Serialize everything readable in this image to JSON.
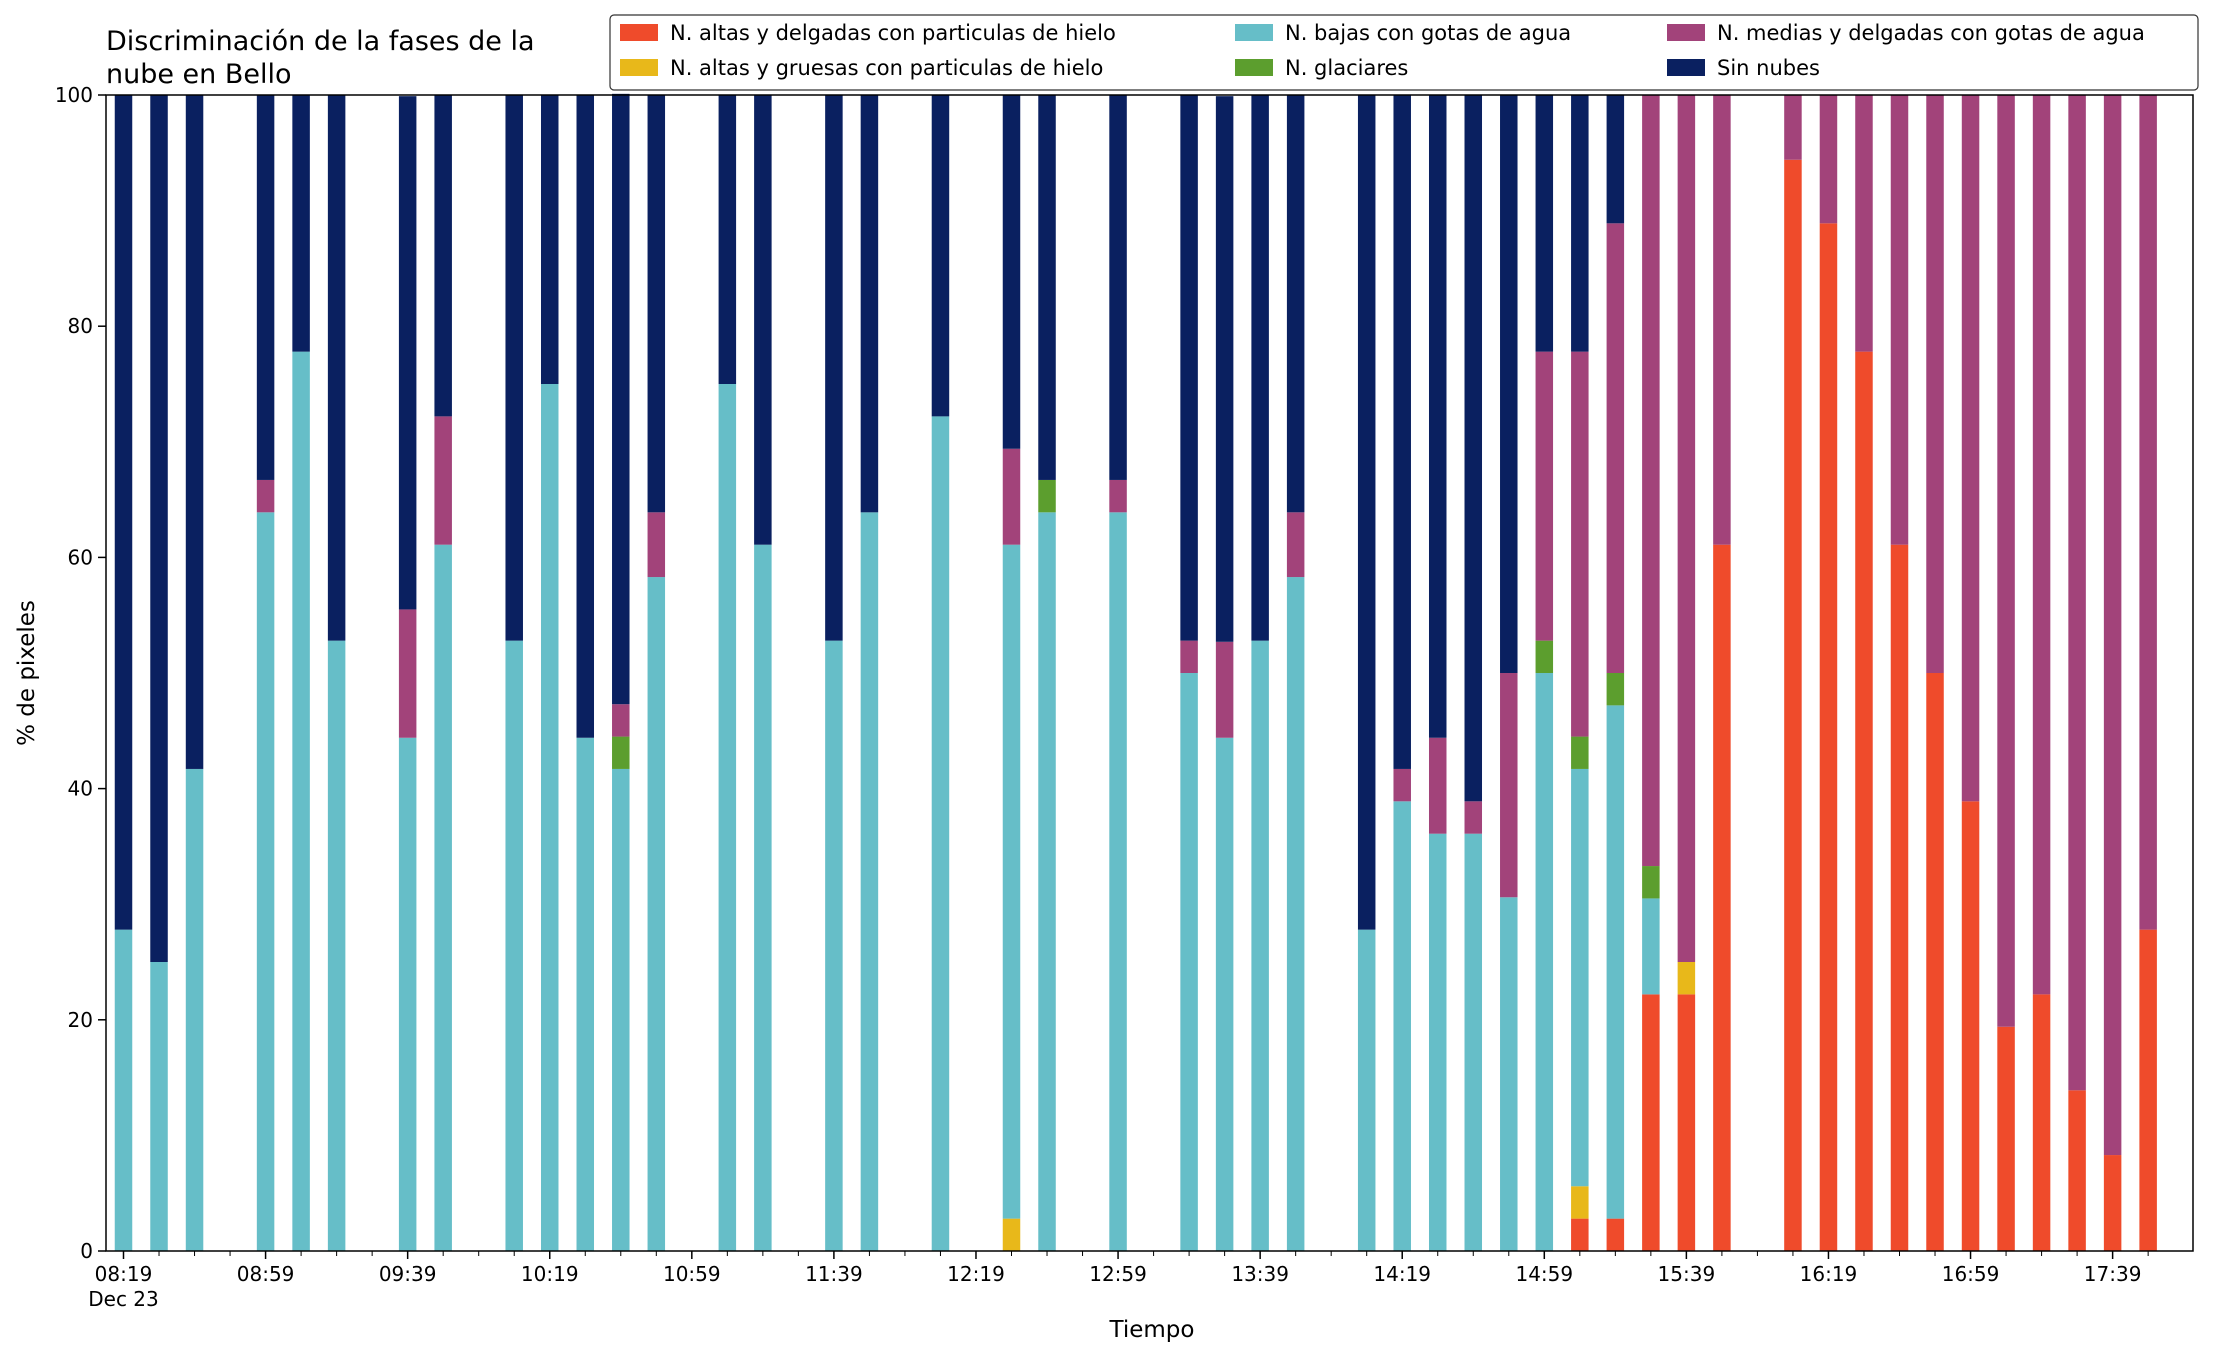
{
  "chart_data": {
    "type": "bar",
    "stacked": true,
    "title_lines": [
      "Discriminación de la fases de la",
      "nube en Bello"
    ],
    "xlabel": "Tiempo",
    "ylabel": "% de pixeles",
    "ylim": [
      0,
      100
    ],
    "yticks": [
      0,
      20,
      40,
      60,
      80,
      100
    ],
    "grid": false,
    "legend_position": "top-right",
    "x_start": "08:19",
    "x_step_minutes": 10,
    "x_count": 58,
    "xtick_labels": [
      {
        "label": "08:19",
        "sublabel": "Dec 23",
        "index": 0
      },
      {
        "label": "08:59",
        "index": 4
      },
      {
        "label": "09:39",
        "index": 8
      },
      {
        "label": "10:19",
        "index": 12
      },
      {
        "label": "10:59",
        "index": 16
      },
      {
        "label": "11:39",
        "index": 20
      },
      {
        "label": "12:19",
        "index": 24
      },
      {
        "label": "12:59",
        "index": 28
      },
      {
        "label": "13:39",
        "index": 32
      },
      {
        "label": "14:19",
        "index": 36
      },
      {
        "label": "14:59",
        "index": 40
      },
      {
        "label": "15:39",
        "index": 44
      },
      {
        "label": "16:19",
        "index": 48
      },
      {
        "label": "16:59",
        "index": 52
      },
      {
        "label": "17:39",
        "index": 56
      }
    ],
    "series": [
      {
        "name": "N. altas y delgadas con particulas de hielo",
        "color": "#ef4b2b",
        "values": [
          0,
          0,
          0,
          null,
          0,
          0,
          0,
          null,
          0,
          0,
          null,
          0,
          0,
          0,
          0,
          0,
          null,
          0,
          0,
          null,
          0,
          0,
          null,
          0,
          null,
          0,
          0,
          null,
          0,
          null,
          0,
          0,
          0,
          0,
          null,
          0,
          0,
          0,
          0,
          0,
          0,
          2.8,
          2.8,
          22.2,
          22.2,
          61.1,
          null,
          94.4,
          88.9,
          77.8,
          61.1,
          50,
          38.9,
          19.4,
          22.2,
          13.9,
          8.3,
          27.8
        ]
      },
      {
        "name": "N. altas y gruesas con particulas de hielo",
        "color": "#e8b81a",
        "values": [
          0,
          0,
          0,
          null,
          0,
          0,
          0,
          null,
          0,
          0,
          null,
          0,
          0,
          0,
          0,
          0,
          null,
          0,
          0,
          null,
          0,
          0,
          null,
          0,
          null,
          2.8,
          0,
          null,
          0,
          null,
          0,
          0,
          0,
          0,
          null,
          0,
          0,
          0,
          0,
          0,
          0,
          2.8,
          0,
          0,
          2.8,
          0,
          null,
          0,
          0,
          0,
          0,
          0,
          0,
          0,
          0,
          0,
          0,
          0
        ]
      },
      {
        "name": "N. bajas con gotas de agua",
        "color": "#66bec8",
        "values": [
          27.8,
          25,
          41.7,
          null,
          63.9,
          77.8,
          52.8,
          null,
          44.4,
          61.1,
          null,
          52.8,
          75,
          44.4,
          41.7,
          58.3,
          null,
          75,
          61.1,
          null,
          52.8,
          63.9,
          null,
          72.2,
          null,
          58.3,
          63.9,
          null,
          63.9,
          null,
          50,
          44.4,
          52.8,
          58.3,
          null,
          27.8,
          38.9,
          36.1,
          36.1,
          30.6,
          50,
          36.1,
          44.4,
          8.3,
          0,
          0,
          null,
          0,
          0,
          0,
          0,
          0,
          0,
          0,
          0,
          0,
          0,
          0
        ]
      },
      {
        "name": "N. glaciares",
        "color": "#5c9e2e",
        "values": [
          0,
          0,
          0,
          null,
          0,
          0,
          0,
          null,
          0,
          0,
          null,
          0,
          0,
          0,
          2.8,
          0,
          null,
          0,
          0,
          null,
          0,
          0,
          null,
          0,
          null,
          0,
          2.8,
          null,
          0,
          null,
          0,
          0,
          0,
          0,
          null,
          0,
          0,
          0,
          0,
          0,
          2.8,
          2.8,
          2.8,
          2.8,
          0,
          0,
          null,
          0,
          0,
          0,
          0,
          0,
          0,
          0,
          0,
          0,
          0,
          0
        ]
      },
      {
        "name": "N. medias y delgadas con gotas de agua",
        "color": "#a2437a",
        "values": [
          0,
          0,
          0,
          null,
          2.8,
          0,
          0,
          null,
          11.1,
          11.1,
          null,
          0,
          0,
          0,
          2.8,
          5.6,
          null,
          0,
          0,
          null,
          0,
          0,
          null,
          0,
          null,
          8.3,
          0,
          null,
          2.8,
          null,
          2.8,
          8.3,
          0,
          5.6,
          null,
          0,
          2.8,
          8.3,
          2.8,
          19.4,
          25,
          33.3,
          38.9,
          66.7,
          75,
          38.9,
          null,
          5.6,
          11.1,
          22.2,
          38.9,
          50,
          61.1,
          80.6,
          77.8,
          86.1,
          91.7,
          72.2
        ]
      },
      {
        "name": "Sin nubes",
        "color": "#0a2060",
        "values": [
          72.2,
          75,
          58.3,
          null,
          33.3,
          22.2,
          47.2,
          null,
          44.4,
          27.8,
          null,
          47.2,
          25,
          55.6,
          52.8,
          36.1,
          null,
          25,
          38.9,
          null,
          47.2,
          36.1,
          null,
          27.8,
          null,
          30.6,
          33.3,
          null,
          33.3,
          null,
          47.2,
          47.2,
          47.2,
          36.1,
          null,
          72.2,
          58.3,
          55.6,
          61.1,
          50,
          22.2,
          22.2,
          11.1,
          0,
          0,
          0,
          null,
          0,
          0,
          0,
          0,
          0,
          0,
          0,
          0,
          0,
          0,
          0
        ]
      }
    ]
  }
}
